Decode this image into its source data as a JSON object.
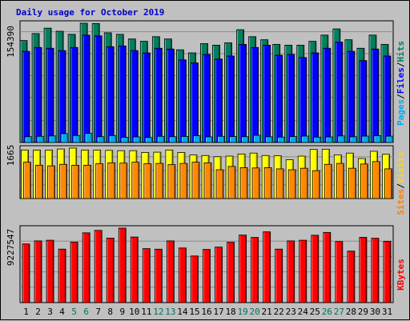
{
  "chart_data": {
    "type": "bar",
    "title": "Daily usage for October 2019",
    "categories": [
      "1",
      "2",
      "3",
      "4",
      "5",
      "6",
      "7",
      "8",
      "9",
      "10",
      "11",
      "12",
      "13",
      "14",
      "15",
      "16",
      "17",
      "18",
      "19",
      "20",
      "21",
      "22",
      "23",
      "24",
      "25",
      "26",
      "27",
      "28",
      "29",
      "30",
      "31"
    ],
    "weekend_days": [
      "5",
      "6",
      "12",
      "13",
      "19",
      "20",
      "26",
      "27"
    ],
    "grid": true,
    "panels": [
      {
        "id": "traffic",
        "ymax_label": "154390",
        "legend": [
          {
            "text": "Pages",
            "color": "#00aaee"
          },
          {
            "text": "/",
            "color": "#000000"
          },
          {
            "text": "Files",
            "color": "#0000ff"
          },
          {
            "text": "/",
            "color": "#000000"
          },
          {
            "text": "Hits",
            "color": "#008060"
          }
        ],
        "series": [
          {
            "name": "Hits",
            "color": "#008060",
            "values": [
              132000,
              141000,
              148000,
              144000,
              140000,
              154390,
              154000,
              142000,
              140000,
              134000,
              131000,
              137000,
              134000,
              120000,
              116000,
              128000,
              126000,
              129000,
              146000,
              137000,
              133000,
              127000,
              126000,
              126000,
              131000,
              139000,
              147000,
              133000,
              122000,
              139000,
              127000
            ]
          },
          {
            "name": "Files",
            "color": "#0000ff",
            "values": [
              118000,
              123000,
              122000,
              119000,
              123000,
              139000,
              138000,
              124000,
              125000,
              119000,
              116000,
              122000,
              121000,
              107000,
              103000,
              114000,
              108000,
              112000,
              127000,
              123000,
              126000,
              113000,
              114000,
              110000,
              116000,
              122000,
              130000,
              118000,
              106000,
              121000,
              112000
            ]
          },
          {
            "name": "Pages",
            "color": "#00aaee",
            "values": [
              7500,
              8000,
              8500,
              11500,
              9000,
              11800,
              7500,
              9000,
              6800,
              7200,
              6500,
              8000,
              7500,
              7800,
              8800,
              7300,
              8000,
              7700,
              7500,
              9300,
              7400,
              7000,
              7700,
              8300,
              6900,
              7200,
              8500,
              7400,
              8300,
              8800,
              8200
            ]
          }
        ]
      },
      {
        "id": "visits",
        "ymax_label": "1665",
        "legend": [
          {
            "text": "Sites",
            "color": "#ff8000"
          },
          {
            "text": "/",
            "color": "#000000"
          },
          {
            "text": "Visits",
            "color": "#ffd800"
          }
        ],
        "series": [
          {
            "name": "Visits",
            "color": "#ffff00",
            "values": [
              1600,
              1600,
              1600,
              1635,
              1665,
              1600,
              1600,
              1590,
              1580,
              1580,
              1520,
              1530,
              1600,
              1520,
              1440,
              1420,
              1380,
              1400,
              1470,
              1500,
              1420,
              1410,
              1280,
              1400,
              1620,
              1630,
              1440,
              1500,
              1320,
              1560,
              1460
            ]
          },
          {
            "name": "Sites",
            "color": "#ff8800",
            "values": [
              1200,
              1100,
              1080,
              1130,
              1100,
              1100,
              1150,
              1180,
              1170,
              1200,
              1150,
              1160,
              1120,
              1160,
              1200,
              1180,
              950,
              1060,
              1020,
              1010,
              1020,
              980,
              950,
              1000,
              920,
              1130,
              1160,
              1000,
              1140,
              1220,
              980
            ]
          }
        ]
      },
      {
        "id": "kbytes",
        "ymax_label": "9227547",
        "legend": [
          {
            "text": "KBytes",
            "color": "#ff0000"
          }
        ],
        "series": [
          {
            "name": "KBytes",
            "color": "#ff0000",
            "values": [
              7270000,
              7650000,
              7730000,
              6630000,
              7490000,
              8650000,
              8950000,
              7990000,
              9227547,
              8130000,
              6690000,
              6620000,
              7650000,
              6770000,
              5780000,
              6590000,
              6880000,
              7480000,
              8370000,
              8080000,
              8770000,
              6630000,
              7650000,
              7730000,
              8350000,
              8700000,
              7570000,
              6380000,
              8090000,
              7980000,
              7600000
            ]
          }
        ]
      }
    ]
  }
}
